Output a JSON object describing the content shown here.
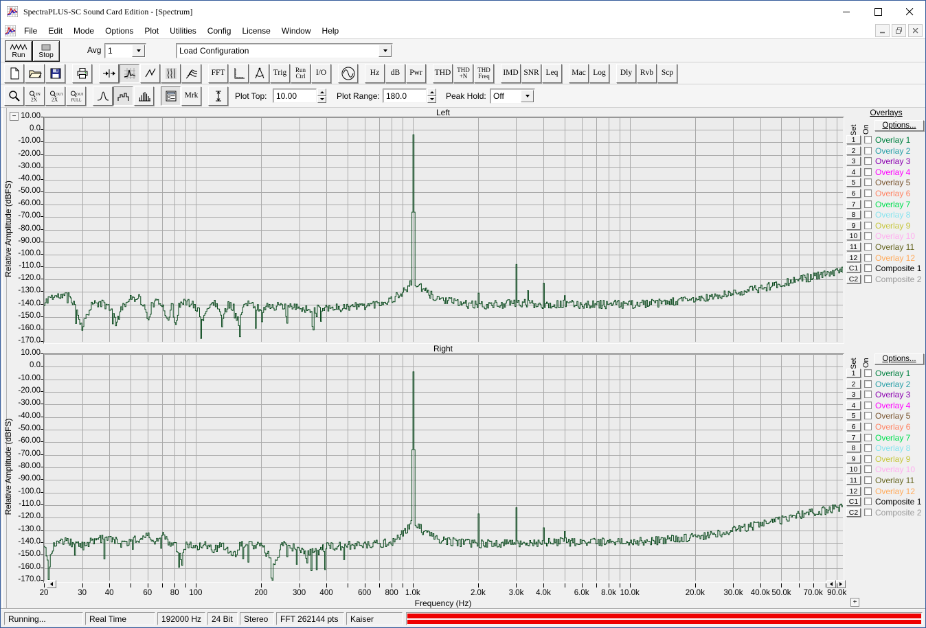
{
  "window": {
    "title": "SpectraPLUS-SC Sound Card Edition - [Spectrum]",
    "controls": {
      "minimize": "minimize",
      "maximize": "maximize",
      "close": "close"
    }
  },
  "menu": {
    "items": [
      "File",
      "Edit",
      "Mode",
      "Options",
      "Plot",
      "Utilities",
      "Config",
      "License",
      "Window",
      "Help"
    ]
  },
  "toolbar_main": {
    "run_label": "Run",
    "stop_label": "Stop",
    "avg_label": "Avg",
    "avg_value": "1",
    "config_value": "Load Configuration"
  },
  "toolbar_icons": {
    "buttons": [
      {
        "name": "new-file-button",
        "icon": "page"
      },
      {
        "name": "open-file-button",
        "icon": "folder"
      },
      {
        "name": "save-button",
        "icon": "floppy"
      },
      {
        "name": "print-button",
        "icon": "printer",
        "gap": true
      },
      {
        "name": "input-signal-button",
        "icon": "signal-arrows",
        "gap": true
      },
      {
        "name": "spectrum-view-button",
        "icon": "spectrum",
        "active": true
      },
      {
        "name": "time-series-view-button",
        "icon": "time-series"
      },
      {
        "name": "spectrogram-view-button",
        "icon": "spectrogram"
      },
      {
        "name": "surface-view-button",
        "icon": "surface"
      },
      {
        "name": "fft-settings-button",
        "lines": [
          "FFT"
        ],
        "gap": true
      },
      {
        "name": "scaling-button",
        "icon": "ruler"
      },
      {
        "name": "measure-button",
        "icon": "caliper"
      },
      {
        "name": "trigger-button",
        "lines": [
          "Trig"
        ]
      },
      {
        "name": "run-control-button",
        "lines": [
          "Run",
          "Ctrl"
        ]
      },
      {
        "name": "io-button",
        "lines": [
          "I/O"
        ]
      },
      {
        "name": "signal-generator-button",
        "icon": "sine",
        "gap": true
      },
      {
        "name": "hz-button",
        "lines": [
          "Hz"
        ],
        "gap": true
      },
      {
        "name": "db-button",
        "lines": [
          "dB"
        ]
      },
      {
        "name": "pwr-button",
        "lines": [
          "Pwr"
        ]
      },
      {
        "name": "thd-button",
        "lines": [
          "THD"
        ],
        "gap": true
      },
      {
        "name": "thd-n-button",
        "lines": [
          "THD",
          "+N"
        ]
      },
      {
        "name": "thd-freq-button",
        "lines": [
          "THD",
          "Freq"
        ]
      },
      {
        "name": "imd-button",
        "lines": [
          "IMD"
        ],
        "gap": true
      },
      {
        "name": "snr-button",
        "lines": [
          "SNR"
        ]
      },
      {
        "name": "leq-button",
        "lines": [
          "Leq"
        ]
      },
      {
        "name": "macro-button",
        "lines": [
          "Mac"
        ],
        "gap": true
      },
      {
        "name": "logging-button",
        "lines": [
          "Log"
        ]
      },
      {
        "name": "delay-button",
        "lines": [
          "Dly"
        ],
        "gap": true
      },
      {
        "name": "reverb-button",
        "lines": [
          "Rvb"
        ]
      },
      {
        "name": "scope-button",
        "lines": [
          "Scp"
        ]
      }
    ]
  },
  "toolbar_plot": {
    "buttons": [
      {
        "name": "zoom-button",
        "icon": "magnifier"
      },
      {
        "name": "zoom-in-2x-button",
        "icon": "zoom-in-2x"
      },
      {
        "name": "zoom-out-2x-button",
        "icon": "zoom-out-2x"
      },
      {
        "name": "zoom-out-full-button",
        "icon": "zoom-out-full"
      },
      {
        "name": "line-plot-button",
        "icon": "peak",
        "gap": true
      },
      {
        "name": "step-plot-button",
        "icon": "step",
        "active": true
      },
      {
        "name": "bar-plot-button",
        "icon": "bars"
      },
      {
        "name": "legend-button",
        "icon": "legend",
        "active": true,
        "gap": true
      },
      {
        "name": "marker-button",
        "lines": [
          "Mrk"
        ]
      },
      {
        "name": "amplitude-range-button",
        "icon": "ibeam",
        "gap": true
      }
    ],
    "plot_top_label": "Plot Top:",
    "plot_top_value": "10.00",
    "plot_range_label": "Plot Range:",
    "plot_range_value": "180.0",
    "peak_hold_label": "Peak Hold:",
    "peak_hold_value": "Off"
  },
  "overlays": {
    "title": "Overlays",
    "set_label": "Set",
    "on_label": "On",
    "options_label": "Options...",
    "items": [
      {
        "id": "1",
        "label": "Overlay 1",
        "color": "#008040"
      },
      {
        "id": "2",
        "label": "Overlay 2",
        "color": "#2aa0a8"
      },
      {
        "id": "3",
        "label": "Overlay 3",
        "color": "#8b00b0"
      },
      {
        "id": "4",
        "label": "Overlay 4",
        "color": "#ff00ff"
      },
      {
        "id": "5",
        "label": "Overlay 5",
        "color": "#7a5632"
      },
      {
        "id": "6",
        "label": "Overlay 6",
        "color": "#ff8464"
      },
      {
        "id": "7",
        "label": "Overlay 7",
        "color": "#00e050"
      },
      {
        "id": "8",
        "label": "Overlay 8",
        "color": "#88e4ee"
      },
      {
        "id": "9",
        "label": "Overlay 9",
        "color": "#c6c63e"
      },
      {
        "id": "10",
        "label": "Overlay 10",
        "color": "#ffb0f0"
      },
      {
        "id": "11",
        "label": "Overlay 11",
        "color": "#666622"
      },
      {
        "id": "12",
        "label": "Overlay 12",
        "color": "#ffac5e"
      },
      {
        "id": "C1",
        "label": "Composite 1",
        "color": "#000000"
      },
      {
        "id": "C2",
        "label": "Composite 2",
        "color": "#9a9a9a"
      }
    ]
  },
  "status": {
    "items": [
      "Running...",
      "Real Time",
      "192000 Hz",
      "24 Bit",
      "Stereo",
      "FFT 262144 pts",
      "Kaiser"
    ],
    "progress_color": "#ee0000"
  },
  "chart_data": [
    {
      "type": "line",
      "title": "Left",
      "xlabel": "Frequency (Hz)",
      "ylabel": "Relative Amplitude (dBFS)",
      "x_scale": "log",
      "xlim": [
        20,
        96000
      ],
      "ylim": [
        -170,
        10
      ],
      "grid": true,
      "trace_color": "#0b4a1e",
      "y_tick_labels": [
        "10.00",
        "0.0",
        "-10.00",
        "-20.00",
        "-30.00",
        "-40.00",
        "-50.00",
        "-60.00",
        "-70.00",
        "-80.00",
        "-90.00",
        "-100.0",
        "-110.0",
        "-120.0",
        "-130.0",
        "-140.0",
        "-150.0",
        "-160.0",
        "-170.0"
      ],
      "x_ticks": [
        {
          "f": 20,
          "label": "20"
        },
        {
          "f": 30,
          "label": "30"
        },
        {
          "f": 40,
          "label": "40"
        },
        {
          "f": 60,
          "label": "60"
        },
        {
          "f": 80,
          "label": "80"
        },
        {
          "f": 100,
          "label": "100"
        },
        {
          "f": 200,
          "label": "200"
        },
        {
          "f": 300,
          "label": "300"
        },
        {
          "f": 400,
          "label": "400"
        },
        {
          "f": 600,
          "label": "600"
        },
        {
          "f": 800,
          "label": "800"
        },
        {
          "f": 1000,
          "label": "1.0k"
        },
        {
          "f": 2000,
          "label": "2.0k"
        },
        {
          "f": 3000,
          "label": "3.0k"
        },
        {
          "f": 4000,
          "label": "4.0k"
        },
        {
          "f": 6000,
          "label": "6.0k"
        },
        {
          "f": 8000,
          "label": "8.0k"
        },
        {
          "f": 10000,
          "label": "10.0k"
        },
        {
          "f": 20000,
          "label": "20.0k"
        },
        {
          "f": 30000,
          "label": "30.0k"
        },
        {
          "f": 40000,
          "label": "40.0k"
        },
        {
          "f": 50000,
          "label": "50.0k"
        },
        {
          "f": 70000,
          "label": "70.0k"
        },
        {
          "f": 90000,
          "label": "90.0k"
        }
      ],
      "noise_floor_env": [
        [
          20,
          -141
        ],
        [
          21,
          -134
        ],
        [
          26,
          -133
        ],
        [
          28,
          -141
        ],
        [
          29,
          -152
        ],
        [
          30,
          -159
        ],
        [
          31,
          -150
        ],
        [
          33,
          -140
        ],
        [
          36,
          -139
        ],
        [
          40,
          -142
        ],
        [
          43,
          -155
        ],
        [
          46,
          -140
        ],
        [
          50,
          -136
        ],
        [
          54,
          -133
        ],
        [
          57,
          -140
        ],
        [
          60,
          -152
        ],
        [
          63,
          -139
        ],
        [
          70,
          -139
        ],
        [
          74,
          -152
        ],
        [
          78,
          -140
        ],
        [
          80,
          -160
        ],
        [
          83,
          -141
        ],
        [
          90,
          -138
        ],
        [
          100,
          -142
        ],
        [
          108,
          -152
        ],
        [
          115,
          -140
        ],
        [
          125,
          -139
        ],
        [
          133,
          -152
        ],
        [
          140,
          -140
        ],
        [
          150,
          -142
        ],
        [
          158,
          -157
        ],
        [
          165,
          -141
        ],
        [
          180,
          -140
        ],
        [
          200,
          -144
        ],
        [
          220,
          -141
        ],
        [
          250,
          -142
        ],
        [
          300,
          -143
        ],
        [
          350,
          -144
        ],
        [
          400,
          -142
        ],
        [
          450,
          -143
        ],
        [
          500,
          -142
        ],
        [
          600,
          -141
        ],
        [
          700,
          -139
        ],
        [
          800,
          -136
        ],
        [
          850,
          -133
        ],
        [
          900,
          -130
        ],
        [
          950,
          -126
        ],
        [
          1000,
          -122
        ],
        [
          1060,
          -125
        ],
        [
          1120,
          -129
        ],
        [
          1250,
          -134
        ],
        [
          1500,
          -138
        ],
        [
          2000,
          -141
        ],
        [
          2500,
          -140
        ],
        [
          3000,
          -139
        ],
        [
          4000,
          -140
        ],
        [
          5000,
          -140
        ],
        [
          6000,
          -140
        ],
        [
          8000,
          -140
        ],
        [
          10000,
          -140
        ],
        [
          14000,
          -139
        ],
        [
          20000,
          -136
        ],
        [
          25000,
          -134
        ],
        [
          30000,
          -131
        ],
        [
          40000,
          -127
        ],
        [
          50000,
          -123
        ],
        [
          60000,
          -120
        ],
        [
          70000,
          -118
        ],
        [
          80000,
          -116
        ],
        [
          96000,
          -113
        ]
      ],
      "peaks": [
        [
          1000,
          -4
        ],
        [
          2000,
          -131
        ],
        [
          3000,
          -108
        ],
        [
          3400,
          -129
        ],
        [
          4000,
          -123
        ],
        [
          5000,
          -133
        ]
      ],
      "noise_jitter_db": 3.4,
      "dip_probability": 0.055,
      "seed": 11
    },
    {
      "type": "line",
      "title": "Right",
      "xlabel": "Frequency (Hz)",
      "ylabel": "Relative Amplitude (dBFS)",
      "x_scale": "log",
      "xlim": [
        20,
        96000
      ],
      "ylim": [
        -170,
        10
      ],
      "grid": true,
      "trace_color": "#0b4a1e",
      "y_tick_labels": [
        "10.00",
        "0.0",
        "-10.00",
        "-20.00",
        "-30.00",
        "-40.00",
        "-50.00",
        "-60.00",
        "-70.00",
        "-80.00",
        "-90.00",
        "-100.0",
        "-110.0",
        "-120.0",
        "-130.0",
        "-140.0",
        "-150.0",
        "-160.0",
        "-170.0"
      ],
      "x_ticks": [
        {
          "f": 20,
          "label": "20"
        },
        {
          "f": 30,
          "label": "30"
        },
        {
          "f": 40,
          "label": "40"
        },
        {
          "f": 60,
          "label": "60"
        },
        {
          "f": 80,
          "label": "80"
        },
        {
          "f": 100,
          "label": "100"
        },
        {
          "f": 200,
          "label": "200"
        },
        {
          "f": 300,
          "label": "300"
        },
        {
          "f": 400,
          "label": "400"
        },
        {
          "f": 600,
          "label": "600"
        },
        {
          "f": 800,
          "label": "800"
        },
        {
          "f": 1000,
          "label": "1.0k"
        },
        {
          "f": 2000,
          "label": "2.0k"
        },
        {
          "f": 3000,
          "label": "3.0k"
        },
        {
          "f": 4000,
          "label": "4.0k"
        },
        {
          "f": 6000,
          "label": "6.0k"
        },
        {
          "f": 8000,
          "label": "8.0k"
        },
        {
          "f": 10000,
          "label": "10.0k"
        },
        {
          "f": 20000,
          "label": "20.0k"
        },
        {
          "f": 30000,
          "label": "30.0k"
        },
        {
          "f": 40000,
          "label": "40.0k"
        },
        {
          "f": 50000,
          "label": "50.0k"
        },
        {
          "f": 70000,
          "label": "70.0k"
        },
        {
          "f": 90000,
          "label": "90.0k"
        }
      ],
      "noise_floor_env": [
        [
          20,
          -140
        ],
        [
          21,
          -160
        ],
        [
          22,
          -141
        ],
        [
          25,
          -139
        ],
        [
          30,
          -141
        ],
        [
          35,
          -138
        ],
        [
          40,
          -135
        ],
        [
          45,
          -141
        ],
        [
          50,
          -139
        ],
        [
          55,
          -136
        ],
        [
          60,
          -134
        ],
        [
          65,
          -138
        ],
        [
          70,
          -134
        ],
        [
          75,
          -140
        ],
        [
          80,
          -140
        ],
        [
          85,
          -152
        ],
        [
          90,
          -141
        ],
        [
          100,
          -143
        ],
        [
          110,
          -140
        ],
        [
          120,
          -147
        ],
        [
          130,
          -141
        ],
        [
          150,
          -150
        ],
        [
          160,
          -141
        ],
        [
          180,
          -142
        ],
        [
          200,
          -143
        ],
        [
          230,
          -155
        ],
        [
          250,
          -142
        ],
        [
          300,
          -145
        ],
        [
          350,
          -148
        ],
        [
          400,
          -143
        ],
        [
          500,
          -142
        ],
        [
          600,
          -142
        ],
        [
          700,
          -141
        ],
        [
          800,
          -139
        ],
        [
          850,
          -136
        ],
        [
          900,
          -132
        ],
        [
          950,
          -128
        ],
        [
          1000,
          -124
        ],
        [
          1060,
          -127
        ],
        [
          1120,
          -131
        ],
        [
          1250,
          -136
        ],
        [
          1500,
          -139
        ],
        [
          2000,
          -141
        ],
        [
          3000,
          -140
        ],
        [
          4000,
          -140
        ],
        [
          5000,
          -139
        ],
        [
          6000,
          -140
        ],
        [
          8000,
          -139
        ],
        [
          10000,
          -139
        ],
        [
          14000,
          -138
        ],
        [
          20000,
          -135
        ],
        [
          25000,
          -133
        ],
        [
          30000,
          -130
        ],
        [
          40000,
          -125
        ],
        [
          50000,
          -122
        ],
        [
          60000,
          -118
        ],
        [
          70000,
          -116
        ],
        [
          80000,
          -114
        ],
        [
          96000,
          -111
        ]
      ],
      "peaks": [
        [
          1000,
          -4
        ],
        [
          2000,
          -117
        ],
        [
          3000,
          -112
        ],
        [
          4000,
          -128
        ],
        [
          5000,
          -131
        ]
      ],
      "noise_jitter_db": 3.4,
      "dip_probability": 0.055,
      "seed": 23
    }
  ]
}
